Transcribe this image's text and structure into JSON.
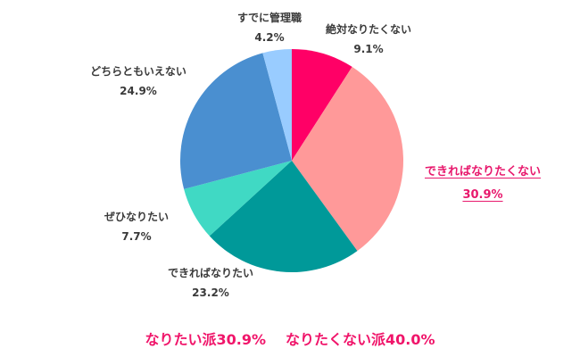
{
  "chart_data": {
    "type": "pie",
    "title": "",
    "start_angle_deg": 0,
    "direction": "clockwise",
    "slices": [
      {
        "label": "絶対なりたくない",
        "value": 9.1,
        "color": "#ff0066"
      },
      {
        "label": "できればなりたくない",
        "value": 30.9,
        "color": "#ff9999",
        "highlight": true
      },
      {
        "label": "できればなりたい",
        "value": 23.2,
        "color": "#009999"
      },
      {
        "label": "ぜひなりたい",
        "value": 7.7,
        "color": "#40d9c4"
      },
      {
        "label": "どちらともいえない",
        "value": 24.9,
        "color": "#4a8fd0"
      },
      {
        "label": "すでに管理職",
        "value": 4.2,
        "color": "#99ccff"
      }
    ],
    "legend": "none",
    "annotations": [
      "なりたい派30.9%",
      "なりたくない派40.0%"
    ]
  },
  "labels": {
    "l0": {
      "name": "絶対なりたくない",
      "pct": "9.1%"
    },
    "l1": {
      "name": "できればなりたくない",
      "pct": "30.9%"
    },
    "l2": {
      "name": "できればなりたい",
      "pct": "23.2%"
    },
    "l3": {
      "name": "ぜひなりたい",
      "pct": "7.7%"
    },
    "l4": {
      "name": "どちらともいえない",
      "pct": "24.9%"
    },
    "l5": {
      "name": "すでに管理職",
      "pct": "4.2%"
    }
  },
  "summary": {
    "want": "なりたい派30.9%",
    "not_want": "なりたくない派40.0%"
  }
}
